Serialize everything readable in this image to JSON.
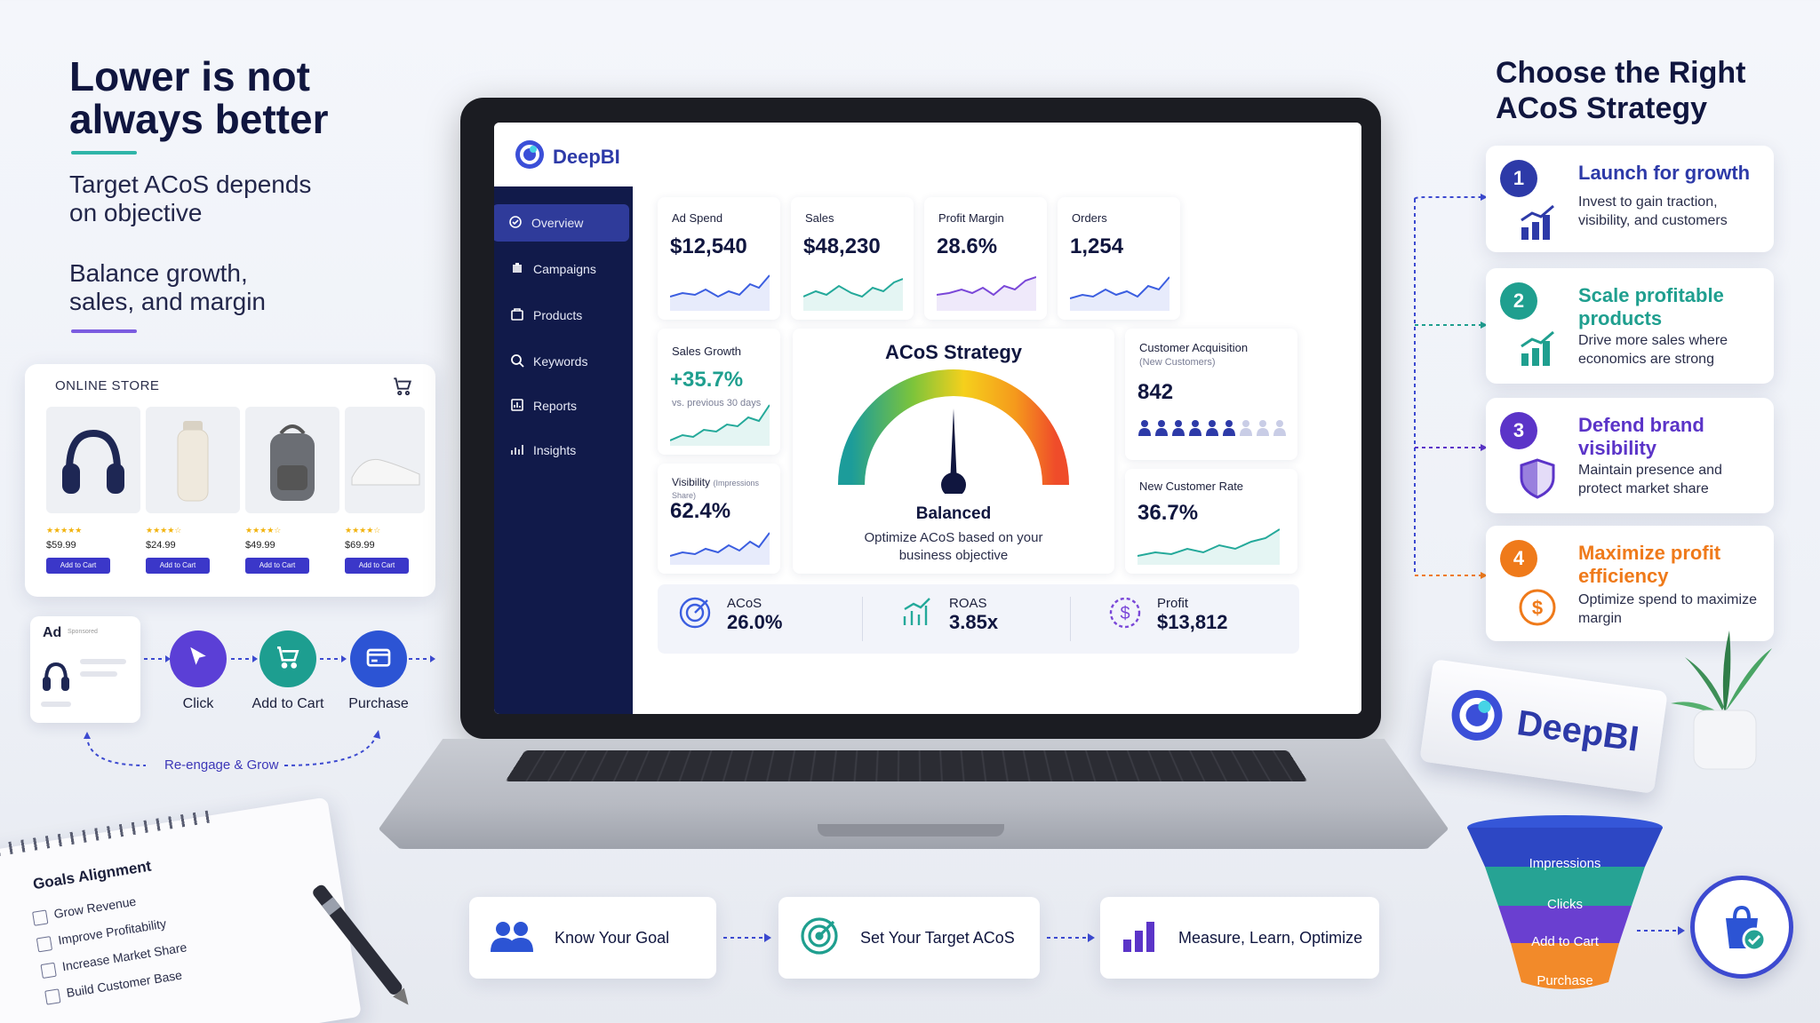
{
  "left": {
    "headline": "Lower is not always better",
    "sub1": "Target ACoS depends on objective",
    "sub2": "Balance growth, sales, and margin"
  },
  "store": {
    "title": "ONLINE STORE",
    "products": [
      {
        "price": "$59.99",
        "cta": "Add to Cart"
      },
      {
        "price": "$24.99",
        "cta": "Add to Cart"
      },
      {
        "price": "$49.99",
        "cta": "Add to Cart"
      },
      {
        "price": "$69.99",
        "cta": "Add to Cart"
      }
    ]
  },
  "flow": {
    "ad_label": "Ad",
    "ad_sub": "Sponsored",
    "steps": [
      "Click",
      "Add to Cart",
      "Purchase"
    ],
    "reengage": "Re-engage & Grow"
  },
  "notebook": {
    "title": "Goals Alignment",
    "items": [
      "Grow Revenue",
      "Improve Profitability",
      "Increase Market Share",
      "Build Customer Base"
    ]
  },
  "app": {
    "brand": "DeepBI",
    "nav": [
      "Overview",
      "Campaigns",
      "Products",
      "Keywords",
      "Reports",
      "Insights"
    ],
    "metrics": [
      {
        "label": "Ad Spend",
        "value": "$12,540",
        "color": "#3b5ee0"
      },
      {
        "label": "Sales",
        "value": "$48,230",
        "color": "#24a99a"
      },
      {
        "label": "Profit Margin",
        "value": "28.6%",
        "color": "#7a47d8"
      },
      {
        "label": "Orders",
        "value": "1,254",
        "color": "#3b5ee0"
      }
    ],
    "sales_growth": {
      "label": "Sales Growth",
      "value": "+35.7%",
      "sub": "vs. previous 30 days"
    },
    "visibility": {
      "label": "Visibility",
      "label_sub": "(Impressions Share)",
      "value": "62.4%"
    },
    "acos": {
      "title": "ACoS Strategy",
      "state": "Balanced",
      "sub": "Optimize ACoS based on your business objective"
    },
    "customer_acq": {
      "label": "Customer Acquisition",
      "sub": "(New Customers)",
      "value": "842",
      "filled": 6,
      "total": 9
    },
    "new_customer_rate": {
      "label": "New Customer Rate",
      "value": "36.7%"
    },
    "kpis": [
      {
        "label": "ACoS",
        "value": "26.0%"
      },
      {
        "label": "ROAS",
        "value": "3.85x"
      },
      {
        "label": "Profit",
        "value": "$13,812"
      }
    ]
  },
  "right": {
    "title": "Choose the Right ACoS Strategy",
    "strategies": [
      {
        "num": "1",
        "title": "Launch for growth",
        "desc": "Invest to gain traction, visibility, and customers",
        "color": "#2d3aa8"
      },
      {
        "num": "2",
        "title": "Scale profitable products",
        "desc": "Drive more sales where economics are strong",
        "color": "#1f9f8f"
      },
      {
        "num": "3",
        "title": "Defend brand visibility",
        "desc": "Maintain presence and protect market share",
        "color": "#5b34c8"
      },
      {
        "num": "4",
        "title": "Maximize profit efficiency",
        "desc": "Optimize spend to maximize margin",
        "color": "#ef7a1a"
      }
    ]
  },
  "bottom_flow": [
    "Know Your Goal",
    "Set Your Target ACoS",
    "Measure, Learn, Optimize"
  ],
  "stand": {
    "brand": "DeepBI"
  },
  "funnel": [
    "Impressions",
    "Clicks",
    "Add to Cart",
    "Purchase"
  ]
}
